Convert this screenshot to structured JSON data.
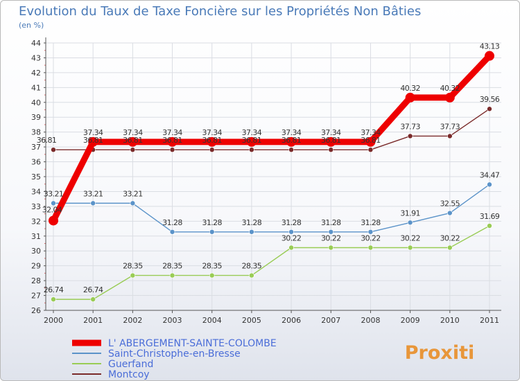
{
  "chart_data": {
    "type": "line",
    "title": "Evolution du Taux de Taxe Foncière sur les Propriétés Non Bâties",
    "ylabel": "(en %)",
    "xlabel": "",
    "categories": [
      "2000",
      "2001",
      "2002",
      "2003",
      "2004",
      "2005",
      "2006",
      "2007",
      "2008",
      "2009",
      "2010",
      "2011"
    ],
    "ylim": [
      26,
      44
    ],
    "yticks": [
      26,
      27,
      28,
      29,
      30,
      31,
      32,
      33,
      34,
      35,
      36,
      37,
      38,
      39,
      40,
      41,
      42,
      43,
      44
    ],
    "grid": true,
    "legend_position": "bottom-left",
    "series": [
      {
        "name": "L' ABERGEMENT-SAINTE-COLOMBE",
        "color": "#ee0000",
        "values": [
          32.04,
          37.34,
          37.34,
          37.34,
          37.34,
          37.34,
          37.34,
          37.34,
          37.34,
          40.32,
          40.32,
          43.13
        ],
        "labels": [
          "32.04",
          "37.34",
          "37.34",
          "37.34",
          "37.34",
          "37.34",
          "37.34",
          "37.34",
          "37.34",
          "40.32",
          "40.32",
          "43.13"
        ]
      },
      {
        "name": "Saint-Christophe-en-Bresse",
        "color": "#5b93c9",
        "values": [
          33.21,
          33.21,
          33.21,
          31.28,
          31.28,
          31.28,
          31.28,
          31.28,
          31.28,
          31.91,
          32.55,
          34.47
        ],
        "labels": [
          "33.21",
          "33.21",
          "33.21",
          "31.28",
          "31.28",
          "31.28",
          "31.28",
          "31.28",
          "31.28",
          "31.91",
          "32.55",
          "34.47"
        ]
      },
      {
        "name": "Guerfand",
        "color": "#99cc55",
        "values": [
          26.74,
          26.74,
          28.35,
          28.35,
          28.35,
          28.35,
          30.22,
          30.22,
          30.22,
          30.22,
          30.22,
          31.69
        ],
        "labels": [
          "26.74",
          "26.74",
          "28.35",
          "28.35",
          "28.35",
          "28.35",
          "30.22",
          "30.22",
          "30.22",
          "30.22",
          "30.22",
          "31.69"
        ]
      },
      {
        "name": "Montcoy",
        "color": "#7a2a2a",
        "values": [
          36.81,
          36.81,
          36.81,
          36.81,
          36.81,
          36.81,
          36.81,
          36.81,
          36.81,
          37.73,
          37.73,
          39.56
        ],
        "labels": [
          "36.81",
          "36.81",
          "36.81",
          "36.81",
          "36.81",
          "36.81",
          "36.81",
          "36.81",
          "36.81",
          "37.73",
          "37.73",
          "39.56"
        ]
      }
    ]
  },
  "brand": {
    "logo_text": "Proxiti"
  }
}
